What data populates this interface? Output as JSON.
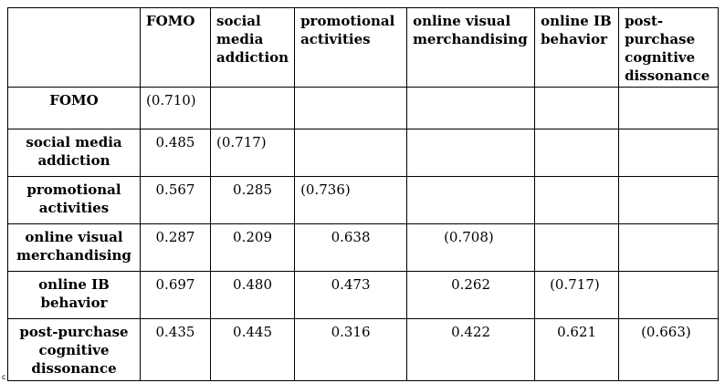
{
  "table": {
    "columns": [
      "FOMO",
      "social media addiction",
      "promotional activities",
      "online visual merchandising",
      "online IB behavior",
      "post-purchase cognitive dissonance"
    ],
    "rows": [
      {
        "label": "FOMO",
        "cells": [
          "(0.710)",
          "",
          "",
          "",
          "",
          ""
        ]
      },
      {
        "label": "social media addiction",
        "cells": [
          "0.485",
          "(0.717)",
          "",
          "",
          "",
          ""
        ]
      },
      {
        "label": "promotional activities",
        "cells": [
          "0.567",
          "0.285",
          "(0.736)",
          "",
          "",
          ""
        ]
      },
      {
        "label": "online visual merchandising",
        "cells": [
          "0.287",
          "0.209",
          "0.638",
          "(0.708)",
          "",
          ""
        ]
      },
      {
        "label": "online IB behavior",
        "cells": [
          "0.697",
          "0.480",
          "0.473",
          "0.262",
          "(0.717)",
          ""
        ]
      },
      {
        "label": "post-purchase cognitive dissonance",
        "cells": [
          "0.435",
          "0.445",
          "0.316",
          "0.422",
          "0.621",
          "(0.663)"
        ]
      }
    ]
  },
  "footnote_mark": "c"
}
